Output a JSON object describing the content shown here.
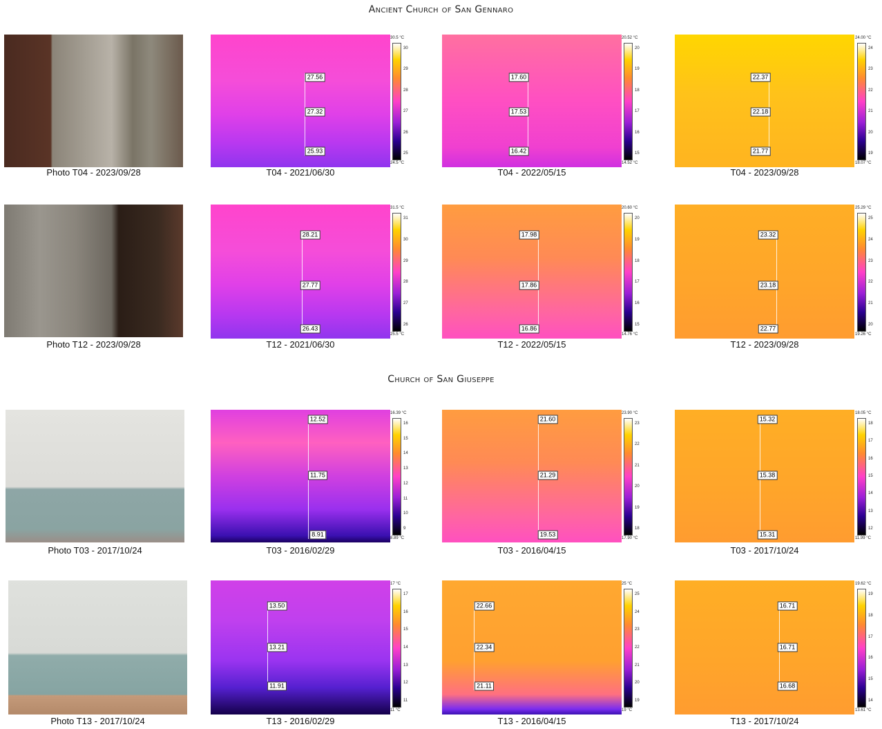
{
  "sections": [
    {
      "title": "Ancient Church of San Gennaro"
    },
    {
      "title": "Church of San Giuseppe"
    }
  ],
  "rows": [
    {
      "photo_caption": "Photo T04 - 2023/09/28",
      "thermals": [
        {
          "caption": "T04 - 2021/06/30",
          "readings": [
            "27.56",
            "27.32",
            "25.93"
          ],
          "scale_max": "30.5 °C",
          "scale_min": "24.5 °C",
          "ticks": [
            "30",
            "29",
            "28",
            "27",
            "26",
            "25"
          ],
          "palette": "magenta"
        },
        {
          "caption": "T04 - 2022/05/15",
          "readings": [
            "17.60",
            "17.53",
            "16.42"
          ],
          "scale_max": "20.52 °C",
          "scale_min": "14.52 °C",
          "ticks": [
            "20",
            "19",
            "18",
            "17",
            "16",
            "15"
          ],
          "palette": "magenta-warm"
        },
        {
          "caption": "T04 - 2023/09/28",
          "readings": [
            "22.37",
            "22.18",
            "21.77"
          ],
          "scale_max": "24.00 °C",
          "scale_min": "18.07 °C",
          "ticks": [
            "24",
            "23",
            "22",
            "21",
            "20",
            "19"
          ],
          "palette": "yellow"
        }
      ]
    },
    {
      "photo_caption": "Photo T12 - 2023/09/28",
      "thermals": [
        {
          "caption": "T12 - 2021/06/30",
          "readings": [
            "28.21",
            "27.77",
            "26.43"
          ],
          "scale_max": "31.5 °C",
          "scale_min": "25.5 °C",
          "ticks": [
            "31",
            "30",
            "29",
            "28",
            "27",
            "26"
          ],
          "palette": "magenta"
        },
        {
          "caption": "T12 - 2022/05/15",
          "readings": [
            "17.98",
            "17.86",
            "16.86"
          ],
          "scale_max": "20.60 °C",
          "scale_min": "14.76 °C",
          "ticks": [
            "20",
            "19",
            "18",
            "17",
            "16",
            "15"
          ],
          "palette": "orange-pink"
        },
        {
          "caption": "T12 - 2023/09/28",
          "readings": [
            "23.32",
            "23.18",
            "22.77"
          ],
          "scale_max": "25.29 °C",
          "scale_min": "19.26 °C",
          "ticks": [
            "25",
            "24",
            "23",
            "22",
            "21",
            "20"
          ],
          "palette": "orange"
        }
      ]
    },
    {
      "photo_caption": "Photo T03 - 2017/10/24",
      "thermals": [
        {
          "caption": "T03 - 2016/02/29",
          "readings": [
            "12.52",
            "11.75",
            "8.91"
          ],
          "scale_max": "16.39 °C",
          "scale_min": "8.89 °C",
          "ticks": [
            "16",
            "15",
            "14",
            "13",
            "12",
            "11",
            "10",
            "9"
          ],
          "palette": "brick"
        },
        {
          "caption": "T03 - 2016/04/15",
          "readings": [
            "21.60",
            "21.29",
            "19.53"
          ],
          "scale_max": "23.90 °C",
          "scale_min": "17.90 °C",
          "ticks": [
            "23",
            "22",
            "21",
            "20",
            "19",
            "18"
          ],
          "palette": "orange-pink"
        },
        {
          "caption": "T03 - 2017/10/24",
          "readings": [
            "15.32",
            "15.38",
            "15.31"
          ],
          "scale_max": "18.05 °C",
          "scale_min": "11.99 °C",
          "ticks": [
            "18",
            "17",
            "16",
            "15",
            "14",
            "13",
            "12"
          ],
          "palette": "orange"
        }
      ]
    },
    {
      "photo_caption": "Photo T13 - 2017/10/24",
      "thermals": [
        {
          "caption": "T13 - 2016/02/29",
          "readings": [
            "13.50",
            "13.21",
            "11.91"
          ],
          "scale_max": "17 °C",
          "scale_min": "11 °C",
          "ticks": [
            "17",
            "16",
            "15",
            "14",
            "13",
            "12",
            "11"
          ],
          "palette": "cold"
        },
        {
          "caption": "T13 - 2016/04/15",
          "readings": [
            "22.66",
            "22.34",
            "21.11"
          ],
          "scale_max": "25 °C",
          "scale_min": "19 °C",
          "ticks": [
            "25",
            "24",
            "23",
            "22",
            "21",
            "20",
            "19"
          ],
          "palette": "orange-floor"
        },
        {
          "caption": "T13 - 2017/10/24",
          "readings": [
            "16.71",
            "16.71",
            "16.68"
          ],
          "scale_max": "19.62 °C",
          "scale_min": "13.61 °C",
          "ticks": [
            "19",
            "18",
            "17",
            "16",
            "15",
            "14"
          ],
          "palette": "orange"
        }
      ]
    }
  ]
}
